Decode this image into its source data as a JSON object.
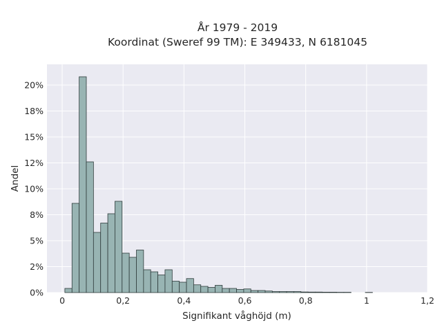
{
  "chart_data": {
    "type": "bar",
    "title": "År 1979 - 2019",
    "subtitle": "Koordinat (Sweref 99 TM): E 349433, N 6181045",
    "xlabel": "Signifikant våghöjd (m)",
    "ylabel": "Andel",
    "x_ticks": [
      0,
      0.2,
      0.4,
      0.6,
      0.8,
      1.0,
      1.2
    ],
    "x_tick_labels": [
      "0",
      "0,2",
      "0,4",
      "0,6",
      "0,8",
      "1",
      "1,2"
    ],
    "y_ticks": [
      0,
      2.5,
      5,
      7.5,
      10,
      12.5,
      15,
      17.5,
      20
    ],
    "y_tick_labels": [
      "0%",
      "2%",
      "5%",
      "8%",
      "10%",
      "12%",
      "15%",
      "18%",
      "20%"
    ],
    "xlim": [
      -0.05,
      1.2
    ],
    "ylim": [
      0,
      22
    ],
    "bin_width": 0.0235,
    "bin_start": 0.0088,
    "values": [
      0.4,
      8.6,
      20.8,
      12.6,
      5.8,
      6.7,
      7.6,
      8.8,
      3.8,
      3.4,
      4.1,
      2.2,
      2.0,
      1.7,
      2.2,
      1.1,
      1.0,
      1.35,
      0.75,
      0.6,
      0.5,
      0.7,
      0.4,
      0.4,
      0.3,
      0.35,
      0.2,
      0.2,
      0.15,
      0.1,
      0.1,
      0.1,
      0.1,
      0.06,
      0.05,
      0.05,
      0.04,
      0.04,
      0.03,
      0.03,
      0,
      0,
      0.02
    ],
    "colors": {
      "bar_fill": "#98b4b3",
      "bar_edge": "#2f3b3b",
      "plot_bg": "#eaeaf2",
      "grid": "#ffffff"
    }
  }
}
